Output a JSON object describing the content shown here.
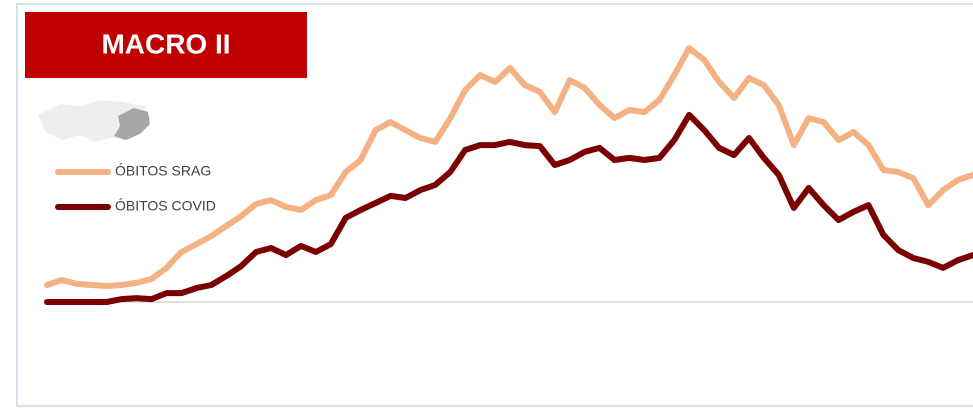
{
  "chart_data": {
    "type": "line",
    "title": "MACRO II",
    "ylim": [
      0,
      100
    ],
    "series": [
      {
        "name": "ÓBITOS SRAG",
        "color": "#f4b183",
        "values": [
          6.5,
          8.4,
          6.9,
          6.5,
          6.1,
          6.5,
          7.3,
          8.8,
          13,
          19.1,
          22.1,
          25.2,
          29,
          32.8,
          37.4,
          38.9,
          36.3,
          35.1,
          38.9,
          40.8,
          49.6,
          54.2,
          65.6,
          68.7,
          65.6,
          62.6,
          61.1,
          70.2,
          80.9,
          86.6,
          84,
          89.3,
          82.8,
          80.2,
          72.5,
          84.7,
          81.7,
          75.2,
          70.2,
          73.3,
          72.5,
          77.1,
          86.6,
          96.9,
          92.4,
          84,
          77.9,
          85.5,
          82.8,
          75.2,
          59.9,
          70.2,
          68.7,
          61.8,
          64.9,
          59.9,
          50.4,
          49.6,
          47.3,
          37,
          42.7,
          46.6,
          48.5
        ]
      },
      {
        "name": "ÓBITOS COVID",
        "color": "#7b0000",
        "values": [
          0,
          0,
          0,
          0,
          0,
          1.1,
          1.5,
          1.1,
          3.4,
          3.4,
          5.3,
          6.5,
          9.9,
          13.7,
          19.1,
          20.6,
          17.9,
          21.4,
          19.1,
          22.1,
          32.1,
          35.1,
          37.8,
          40.5,
          39.7,
          42.7,
          44.7,
          49.6,
          58,
          59.9,
          59.9,
          61.1,
          59.9,
          59.5,
          52.3,
          54.2,
          57.3,
          58.8,
          54.2,
          55,
          54.2,
          55,
          61.8,
          71.4,
          65.6,
          58.8,
          56.1,
          62.6,
          55,
          48.5,
          35.9,
          43.5,
          37,
          31.3,
          34.4,
          37,
          25.6,
          19.8,
          16.8,
          15.3,
          13,
          16,
          17.9
        ]
      }
    ]
  }
}
